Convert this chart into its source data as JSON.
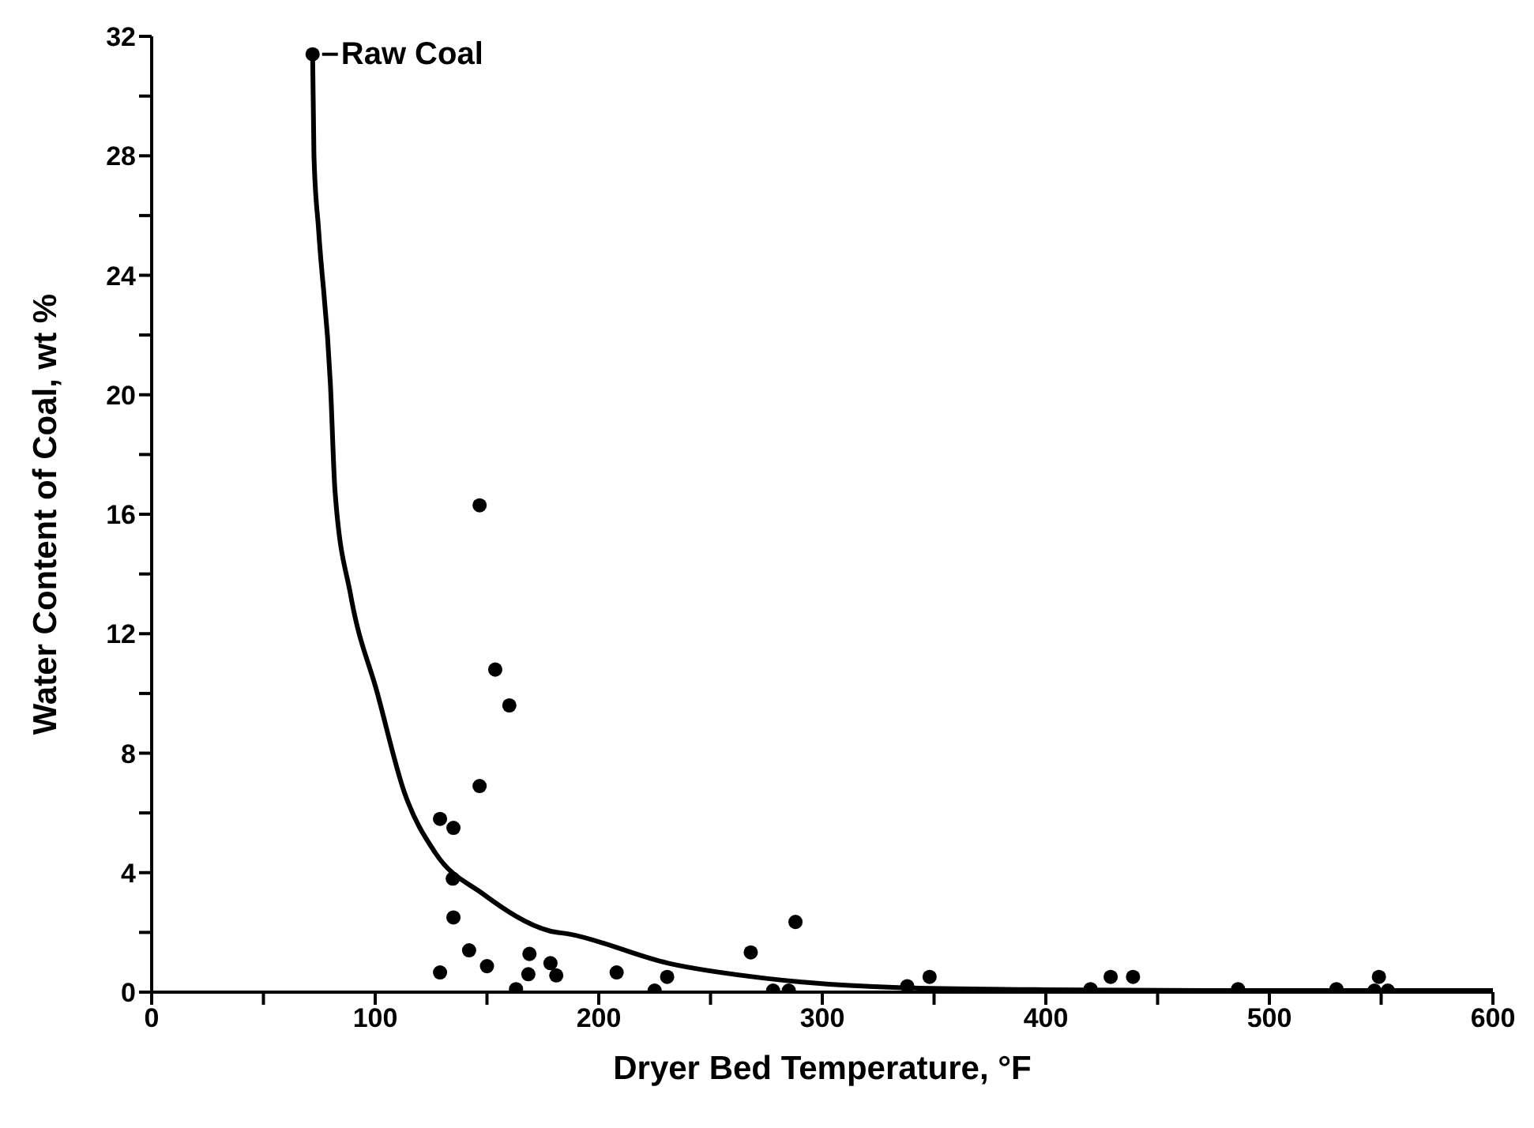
{
  "chart_data": {
    "type": "scatter",
    "xlabel": "Dryer Bed Temperature, °F",
    "ylabel": "Water Content of Coal, wt %",
    "annotations": [
      {
        "text": "Raw Coal",
        "x": 72,
        "y": 31.4
      }
    ],
    "xlim": [
      0,
      600
    ],
    "xticks": [
      0,
      {
        "value": 50,
        "label": null
      },
      100,
      {
        "value": 150,
        "label": null
      },
      200,
      {
        "value": 250,
        "label": null
      },
      300,
      {
        "value": 350,
        "label": null
      },
      400,
      {
        "value": 450,
        "label": null
      },
      500,
      {
        "value": 550,
        "label": null
      },
      600
    ],
    "ylim": [
      0,
      32
    ],
    "yticks": [
      0,
      {
        "value": 2,
        "label": null
      },
      4,
      {
        "value": 6,
        "label": null
      },
      8,
      {
        "value": 10,
        "label": null
      },
      12,
      {
        "value": 14,
        "label": null
      },
      16,
      {
        "value": 18,
        "label": null
      },
      20,
      {
        "value": 22,
        "label": null
      },
      24,
      {
        "value": 26,
        "label": null
      },
      28,
      {
        "value": 30,
        "label": null
      },
      32
    ],
    "grid": false,
    "series": [
      {
        "marker": "circle",
        "color": "#000000",
        "x": [
          72,
          146.7,
          153.7,
          160,
          146.7,
          129,
          135,
          134.7,
          135,
          142,
          129,
          150,
          169,
          168.5,
          163,
          178.4,
          181,
          208,
          225,
          230.6,
          268,
          288,
          278,
          285,
          338,
          348,
          420,
          429,
          439,
          486,
          530,
          549,
          547,
          553
        ],
        "values": [
          31.4,
          16.3,
          10.8,
          9.6,
          6.9,
          5.8,
          5.5,
          3.8,
          2.5,
          1.4,
          0.66,
          0.87,
          1.28,
          0.6,
          0.1,
          0.97,
          0.56,
          0.66,
          0.05,
          0.51,
          1.33,
          2.35,
          0.05,
          0.05,
          0.2,
          0.51,
          0.1,
          0.51,
          0.51,
          0.1,
          0.1,
          0.51,
          0.05,
          0.05
        ]
      },
      {
        "type": "line",
        "marker": "none",
        "color": "#000000",
        "line_style": "solid",
        "x": [
          72,
          72.6,
          74.7,
          80,
          82,
          89,
          101,
          113,
          127,
          148,
          178,
          187,
          231,
          275,
          334,
          400,
          500,
          600
        ],
        "values": [
          31.4,
          28,
          25.5,
          20.3,
          16.8,
          13.3,
          10,
          6.7,
          4.65,
          3.3,
          2.05,
          1.94,
          0.97,
          0.46,
          0.15,
          0.08,
          0.05,
          0.05
        ]
      }
    ]
  }
}
